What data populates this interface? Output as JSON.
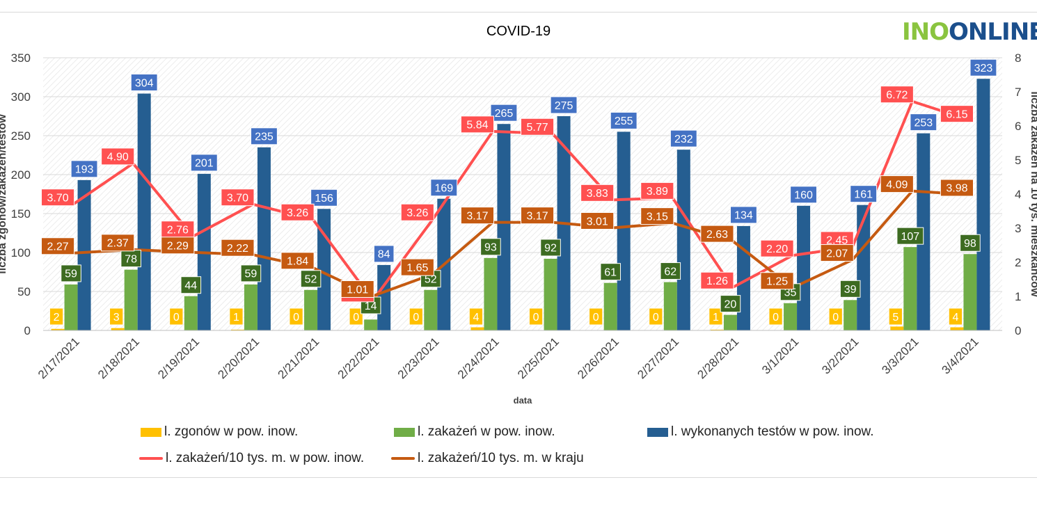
{
  "logo": {
    "part1": "INO",
    "part2": "ONLINE"
  },
  "chart_data": {
    "type": "bar",
    "title": "COVID-19",
    "xlabel": "data",
    "ylabel": "liczba zgonów/zakażeń/testów",
    "y2label": "liczba zakażeń na 10 tys. mieszkańców",
    "ylim": [
      0,
      350
    ],
    "y2lim": [
      0,
      8
    ],
    "yticks": [
      "0",
      "50",
      "100",
      "150",
      "200",
      "250",
      "300",
      "350"
    ],
    "y2ticks": [
      "0",
      "1",
      "2",
      "3",
      "4",
      "5",
      "6",
      "7",
      "8"
    ],
    "grid": true,
    "legend_position": "bottom",
    "categories": [
      "2/17/2021",
      "2/18/2021",
      "2/19/2021",
      "2/20/2021",
      "2/21/2021",
      "2/22/2021",
      "2/23/2021",
      "2/24/2021",
      "2/25/2021",
      "2/26/2021",
      "2/27/2021",
      "2/28/2021",
      "3/1/2021",
      "3/2/2021",
      "3/3/2021",
      "3/4/2021"
    ],
    "series": [
      {
        "name": "l. zgonów w pow. inow.",
        "kind": "bar",
        "axis": "left",
        "color": "#ffc000",
        "label_bg": "#ffc000",
        "labels": [
          "2",
          "3",
          "0",
          "1",
          "0",
          "0",
          "0",
          "4",
          "0",
          "0",
          "0",
          "1",
          "0",
          "0",
          "5",
          "4"
        ],
        "values": [
          2,
          3,
          0,
          1,
          0,
          0,
          0,
          4,
          0,
          0,
          0,
          1,
          0,
          0,
          5,
          4
        ]
      },
      {
        "name": "l. zakażeń w pow. inow.",
        "kind": "bar",
        "axis": "left",
        "color": "#70ad47",
        "label_bg": "#3d6b21",
        "labels": [
          "59",
          "78",
          "44",
          "59",
          "52",
          "14",
          "52",
          "93",
          "92",
          "61",
          "62",
          "20",
          "35",
          "39",
          "107",
          "98"
        ],
        "values": [
          59,
          78,
          44,
          59,
          52,
          14,
          52,
          93,
          92,
          61,
          62,
          20,
          35,
          39,
          107,
          98
        ]
      },
      {
        "name": "l. wykonanych testów w pow. inow.",
        "kind": "bar",
        "axis": "left",
        "color": "#255e91",
        "label_bg": "#4472c4",
        "labels": [
          "193",
          "304",
          "201",
          "235",
          "156",
          "84",
          "169",
          "265",
          "275",
          "255",
          "232",
          "134",
          "160",
          "161",
          "253",
          "323"
        ],
        "values": [
          193,
          304,
          201,
          235,
          156,
          84,
          169,
          265,
          275,
          255,
          232,
          134,
          160,
          161,
          253,
          323
        ]
      },
      {
        "name": "l. zakażeń/10 tys. m. w pow. inow.",
        "kind": "line",
        "axis": "right",
        "color": "#ff5050",
        "label_bg": "#ff5050",
        "labels": [
          "3.70",
          "4.90",
          "2.76",
          "3.70",
          "3.26",
          "0.88",
          "3.26",
          "5.84",
          "5.77",
          "3.83",
          "3.89",
          "1.26",
          "2.20",
          "2.45",
          "6.72",
          "6.15"
        ],
        "values": [
          3.7,
          4.9,
          2.76,
          3.7,
          3.26,
          0.88,
          3.26,
          5.84,
          5.77,
          3.83,
          3.89,
          1.26,
          2.2,
          2.45,
          6.72,
          6.15
        ]
      },
      {
        "name": "l. zakażeń/10 tys. m. w kraju",
        "kind": "line",
        "axis": "right",
        "color": "#c55a11",
        "label_bg": "#c55a11",
        "labels": [
          "2.27",
          "2.37",
          "2.29",
          "2.22",
          "1.84",
          "1.01",
          "1.65",
          "3.17",
          "3.17",
          "3.01",
          "3.15",
          "2.63",
          "1.25",
          "2.07",
          "4.09",
          "3.98"
        ],
        "values": [
          2.27,
          2.37,
          2.29,
          2.22,
          1.84,
          1.01,
          1.65,
          3.17,
          3.17,
          3.01,
          3.15,
          2.63,
          1.25,
          2.07,
          4.09,
          3.98
        ]
      }
    ]
  }
}
